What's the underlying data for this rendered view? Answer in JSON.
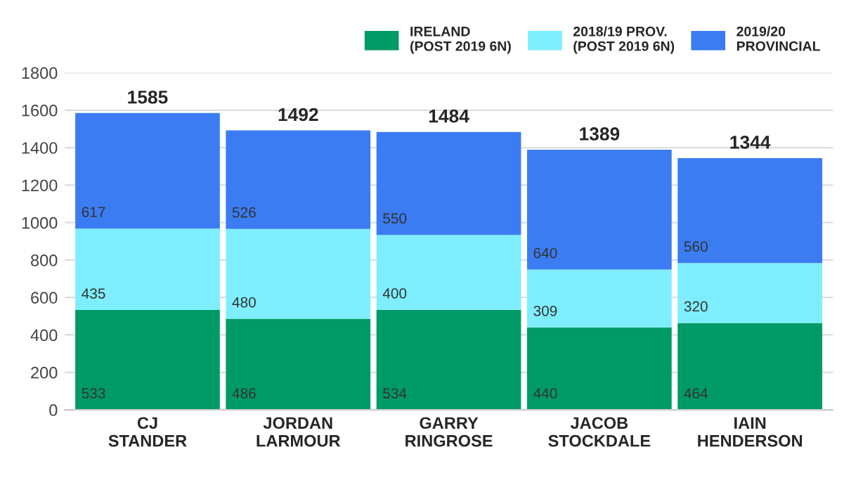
{
  "chart_data": {
    "type": "bar",
    "stacked": true,
    "categories": [
      "CJ\nSTANDER",
      "JORDAN\nLARMOUR",
      "GARRY\nRINGROSE",
      "JACOB\nSTOCKDALE",
      "IAIN\nHENDERSON"
    ],
    "series": [
      {
        "name": "IRELAND\n(POST 2019 6N)",
        "color": "#009a66",
        "values": [
          533,
          486,
          534,
          440,
          464
        ]
      },
      {
        "name": "2018/19 PROV.\n(POST 2019 6N)",
        "color": "#7eeefe",
        "values": [
          435,
          480,
          400,
          309,
          320
        ]
      },
      {
        "name": "2019/20\nPROVINCIAL",
        "color": "#3b7cf2",
        "values": [
          617,
          526,
          550,
          640,
          560
        ]
      }
    ],
    "totals": [
      "1585",
      "1492",
      "1484",
      "1389",
      "1344"
    ],
    "data_labels": true,
    "ylim": [
      0,
      1800
    ],
    "yticks": [
      0,
      200,
      400,
      600,
      800,
      1000,
      1200,
      1400,
      1600,
      1800
    ],
    "grid": "y",
    "legend": "top right"
  }
}
